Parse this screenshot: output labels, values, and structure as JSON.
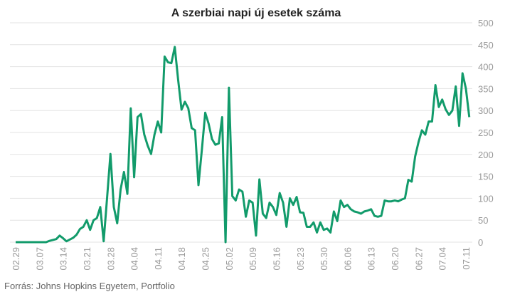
{
  "chart_data": {
    "type": "line",
    "title": "A szerbiai napi új esetek száma",
    "source": "Forrás: Johns Hopkins Egyetem, Portfolio",
    "categories": [
      "02.29",
      null,
      null,
      null,
      null,
      null,
      null,
      "03.07",
      null,
      null,
      null,
      null,
      null,
      null,
      "03.14",
      null,
      null,
      null,
      null,
      null,
      null,
      "03.21",
      null,
      null,
      null,
      null,
      null,
      null,
      "03.28",
      null,
      null,
      null,
      null,
      null,
      null,
      "04.04",
      null,
      null,
      null,
      null,
      null,
      null,
      "04.11",
      null,
      null,
      null,
      null,
      null,
      null,
      "04.18",
      null,
      null,
      null,
      null,
      null,
      null,
      "04.25",
      null,
      null,
      null,
      null,
      null,
      null,
      "05.02",
      null,
      null,
      null,
      null,
      null,
      null,
      "05.09",
      null,
      null,
      null,
      null,
      null,
      null,
      "05.16",
      null,
      null,
      null,
      null,
      null,
      null,
      "05.23",
      null,
      null,
      null,
      null,
      null,
      null,
      "05.30",
      null,
      null,
      null,
      null,
      null,
      null,
      "06.06",
      null,
      null,
      null,
      null,
      null,
      null,
      "06.13",
      null,
      null,
      null,
      null,
      null,
      null,
      "06.20",
      null,
      null,
      null,
      null,
      null,
      null,
      "06.27",
      null,
      null,
      null,
      null,
      null,
      null,
      "07.04",
      null,
      null,
      null,
      null,
      null,
      null,
      "07.11",
      null
    ],
    "series": [
      {
        "name": "Napi új esetek",
        "color": "#129b6b",
        "values": [
          0,
          0,
          0,
          0,
          0,
          0,
          0,
          0,
          0,
          0,
          3,
          5,
          7,
          15,
          9,
          2,
          6,
          10,
          17,
          30,
          35,
          50,
          28,
          50,
          55,
          80,
          2,
          100,
          201,
          80,
          43,
          120,
          160,
          110,
          305,
          148,
          285,
          292,
          245,
          220,
          201,
          245,
          275,
          250,
          423,
          410,
          408,
          445,
          370,
          302,
          320,
          305,
          260,
          255,
          130,
          210,
          295,
          270,
          235,
          222,
          225,
          285,
          0,
          352,
          105,
          95,
          120,
          115,
          58,
          95,
          90,
          15,
          143,
          65,
          55,
          90,
          80,
          62,
          112,
          90,
          35,
          100,
          85,
          103,
          68,
          67,
          35,
          35,
          45,
          22,
          45,
          28,
          31,
          22,
          70,
          48,
          95,
          80,
          85,
          75,
          70,
          68,
          65,
          70,
          72,
          75,
          60,
          58,
          60,
          95,
          93,
          93,
          95,
          93,
          97,
          100,
          142,
          138,
          195,
          228,
          255,
          245,
          275,
          275,
          358,
          308,
          325,
          303,
          290,
          300,
          355,
          265,
          385,
          350,
          285
        ]
      }
    ],
    "ylim": [
      0,
      500
    ],
    "yticks": [
      0,
      50,
      100,
      150,
      200,
      250,
      300,
      350,
      400,
      450,
      500
    ],
    "grid": true
  }
}
